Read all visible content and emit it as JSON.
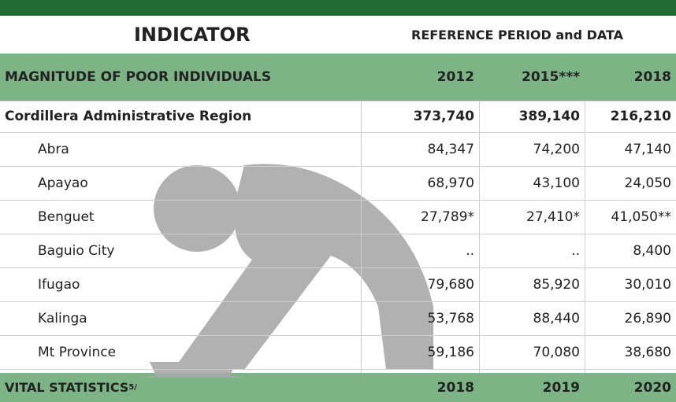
{
  "header": {
    "indicator": "INDICATOR",
    "reference": "REFERENCE PERIOD and DATA"
  },
  "section": {
    "title": "MAGNITUDE OF POOR INDIVIDUALS",
    "years": [
      "2012",
      "2015***",
      "2018"
    ]
  },
  "rows": [
    {
      "name": "Cordillera Administrative Region",
      "values": [
        "373,740",
        "389,140",
        "216,210"
      ]
    },
    {
      "name": "Abra",
      "values": [
        "84,347",
        "74,200",
        "47,140"
      ]
    },
    {
      "name": "Apayao",
      "values": [
        "68,970",
        "43,100",
        "24,050"
      ]
    },
    {
      "name": "Benguet",
      "values": [
        "27,789*",
        "27,410*",
        "41,050**"
      ]
    },
    {
      "name": "Baguio City",
      "values": [
        "..",
        "..",
        "8,400"
      ]
    },
    {
      "name": "Ifugao",
      "values": [
        "79,680",
        "85,920",
        "30,010"
      ]
    },
    {
      "name": "Kalinga",
      "values": [
        "53,768",
        "88,440",
        "26,890"
      ]
    },
    {
      "name": "Mt Province",
      "values": [
        "59,186",
        "70,080",
        "38,680"
      ]
    }
  ],
  "footer": {
    "title": "VITAL STATISTICS",
    "sup": "5/",
    "years": [
      "2018",
      "2019",
      "2020"
    ]
  }
}
